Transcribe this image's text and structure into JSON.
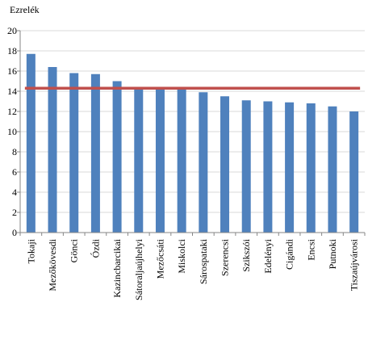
{
  "chart_data": {
    "type": "bar",
    "ylabel": "Ezrelék",
    "ylim": [
      0,
      20
    ],
    "yticks": [
      0,
      2,
      4,
      6,
      8,
      10,
      12,
      14,
      16,
      18,
      20
    ],
    "grid": true,
    "categories": [
      "Tokaji",
      "Mezőkövesdi",
      "Gönci",
      "Ózdi",
      "Kazincbarcikai",
      "Sátoraljaújhelyi",
      "Mezőcsáti",
      "Miskolci",
      "Sárospataki",
      "Szerencsi",
      "Szikszói",
      "Edelényi",
      "Cigándi",
      "Encsi",
      "Putnoki",
      "Tiszaújvárosi"
    ],
    "series": [
      {
        "values": [
          17.7,
          16.4,
          15.8,
          15.7,
          15.0,
          14.4,
          14.3,
          14.3,
          13.9,
          13.5,
          13.1,
          13.0,
          12.9,
          12.8,
          12.5,
          12.0
        ]
      }
    ],
    "reference_line": 14.3,
    "colors": {
      "bar": "#4f81bd",
      "line": "#c0504d",
      "grid": "#d9d9d9",
      "axis": "#868686"
    }
  }
}
